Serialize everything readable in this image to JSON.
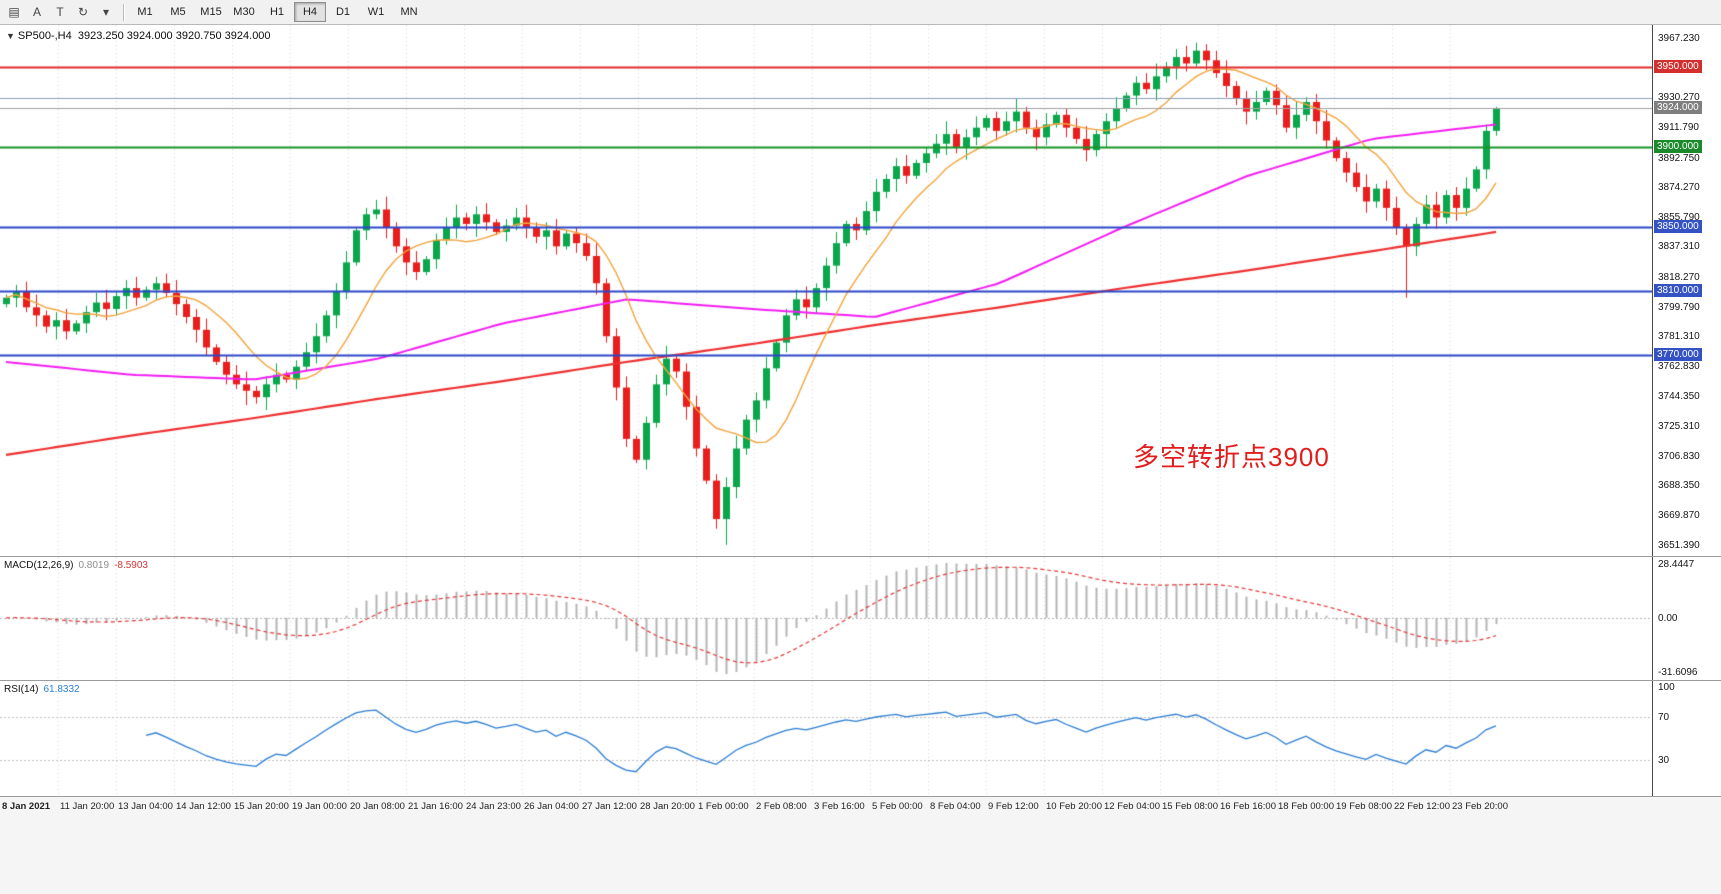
{
  "toolbar": {
    "icons": [
      {
        "name": "chart-windows-icon",
        "glyph": "▤"
      },
      {
        "name": "annotation-letter-icon",
        "glyph": "A"
      },
      {
        "name": "text-tool-icon",
        "glyph": "T"
      },
      {
        "name": "auto-refresh-icon",
        "glyph": "↻"
      },
      {
        "name": "dropdown-caret-icon",
        "glyph": "▾"
      }
    ],
    "timeframes": [
      "M1",
      "M5",
      "M15",
      "M30",
      "H1",
      "H4",
      "D1",
      "W1",
      "MN"
    ],
    "active_timeframe": "H4"
  },
  "chart": {
    "caption_symbol": "SP500-,H4",
    "caption_ohlc": "3923.250 3924.000 3920.750 3924.000",
    "annotation": {
      "text": "多空转折点3900",
      "color": "#e11d1d"
    }
  },
  "chart_data": {
    "type": "candlestick",
    "symbol": "SP500-",
    "timeframe": "H4",
    "ohlc_current": {
      "open": 3923.25,
      "high": 3924.0,
      "low": 3920.75,
      "close": 3924.0
    },
    "price_range": [
      3645,
      3976
    ],
    "price_axis_ticks": [
      "3967.230",
      "3930.270",
      "3911.790",
      "3892.750",
      "3874.270",
      "3855.790",
      "3837.310",
      "3818.270",
      "3799.790",
      "3781.310",
      "3762.830",
      "3744.350",
      "3725.310",
      "3706.830",
      "3688.350",
      "3669.870",
      "3651.390"
    ],
    "x_labels": [
      "8 Jan 2021",
      "11 Jan 20:00",
      "13 Jan 04:00",
      "14 Jan 12:00",
      "15 Jan 20:00",
      "19 Jan 00:00",
      "20 Jan 08:00",
      "21 Jan 16:00",
      "24 Jan 23:00",
      "26 Jan 04:00",
      "27 Jan 12:00",
      "28 Jan 20:00",
      "1 Feb 00:00",
      "2 Feb 08:00",
      "3 Feb 16:00",
      "5 Feb 00:00",
      "8 Feb 04:00",
      "9 Feb 12:00",
      "10 Feb 20:00",
      "12 Feb 04:00",
      "15 Feb 08:00",
      "16 Feb 16:00",
      "18 Feb 00:00",
      "19 Feb 08:00",
      "22 Feb 12:00",
      "23 Feb 20:00"
    ],
    "first_open": 3802,
    "closes": [
      3806,
      3810,
      3800,
      3795,
      3788,
      3792,
      3785,
      3790,
      3797,
      3803,
      3799,
      3807,
      3812,
      3806,
      3811,
      3815,
      3809,
      3802,
      3794,
      3786,
      3775,
      3766,
      3758,
      3752,
      3748,
      3744,
      3752,
      3758,
      3755,
      3763,
      3772,
      3782,
      3795,
      3810,
      3828,
      3848,
      3858,
      3861,
      3850,
      3838,
      3828,
      3822,
      3830,
      3842,
      3850,
      3856,
      3852,
      3858,
      3853,
      3847,
      3851,
      3856,
      3850,
      3844,
      3848,
      3838,
      3846,
      3840,
      3832,
      3815,
      3782,
      3750,
      3718,
      3705,
      3728,
      3752,
      3768,
      3760,
      3738,
      3712,
      3692,
      3668,
      3688,
      3712,
      3730,
      3742,
      3762,
      3778,
      3795,
      3805,
      3800,
      3812,
      3826,
      3840,
      3852,
      3848,
      3860,
      3872,
      3880,
      3888,
      3882,
      3890,
      3896,
      3902,
      3908,
      3900,
      3906,
      3912,
      3918,
      3910,
      3916,
      3922,
      3912,
      3906,
      3914,
      3920,
      3912,
      3905,
      3898,
      3908,
      3916,
      3924,
      3932,
      3940,
      3936,
      3944,
      3950,
      3956,
      3952,
      3960,
      3954,
      3946,
      3938,
      3930,
      3922,
      3928,
      3935,
      3926,
      3912,
      3920,
      3928,
      3916,
      3904,
      3893,
      3884,
      3875,
      3866,
      3874,
      3862,
      3850,
      3838,
      3852,
      3864,
      3856,
      3870,
      3862,
      3874,
      3886,
      3910,
      3924
    ],
    "wick_low_overrides": {
      "24": 3739,
      "72": 3652,
      "140": 3806
    },
    "wick_high_overrides": {
      "119": 3965,
      "149": 3925
    },
    "levels": [
      {
        "price": 3950.0,
        "label": "3950.000",
        "line_color": "#e02a2a",
        "badge_color": "#d32f2f",
        "width": 2
      },
      {
        "price": 3900.0,
        "label": "3900.000",
        "line_color": "#149426",
        "badge_color": "#1b8a2b",
        "width": 2
      },
      {
        "price": 3850.0,
        "label": "3850.000",
        "line_color": "#2b46c8",
        "badge_color": "#3452c4",
        "width": 2
      },
      {
        "price": 3810.0,
        "label": "3810.000",
        "line_color": "#2b46c8",
        "badge_color": "#3452c4",
        "width": 2
      },
      {
        "price": 3770.0,
        "label": "3770.000",
        "line_color": "#2b46c8",
        "badge_color": "#3452c4",
        "width": 2
      }
    ],
    "minor_level": {
      "price": 3930.3,
      "line_color": "#8aa0b8",
      "width": 1
    },
    "current_price": {
      "value": 3924.0,
      "label": "3924.000",
      "line_color": "#a0a0a0",
      "badge_color": "#7f7f7f"
    },
    "moving_averages": {
      "fast": {
        "type": "sma",
        "period": 9,
        "color": "#f2a33c",
        "width": 1.4
      },
      "medium": {
        "color": "#f21df2",
        "width": 2,
        "anchors": [
          3766,
          3758,
          3755,
          3768,
          3790,
          3805,
          3799,
          3794,
          3815,
          3850,
          3882,
          3905,
          3914
        ]
      },
      "slow": {
        "color": "#ee3030",
        "width": 2.2,
        "anchors": [
          3708,
          3720,
          3731,
          3743,
          3754,
          3766,
          3777,
          3789,
          3800,
          3812,
          3823,
          3835,
          3847
        ]
      }
    },
    "macd": {
      "label": "MACD(12,26,9)",
      "main_value": "0.8019",
      "signal_value": "-8.5903",
      "fast": 12,
      "slow": 26,
      "signal_period": 9,
      "axis_max_label": "28.4447",
      "axis_zero_label": "0.00",
      "axis_min_label": "-31.6096",
      "histogram_color": "#b3b3b3",
      "signal_color": "#e23a3a"
    },
    "rsi": {
      "label": "RSI(14)",
      "value": "61.8332",
      "period": 14,
      "line_color": "#2d7dd2",
      "axis_labels": [
        "100",
        "70",
        "30"
      ],
      "guide_levels": [
        70,
        30
      ]
    },
    "candle_colors": {
      "up": "#0aa64c",
      "down": "#ea1d1d"
    }
  }
}
